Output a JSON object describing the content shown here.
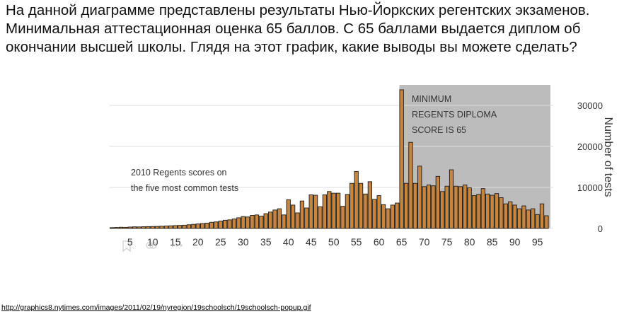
{
  "question": "На данной диаграмме представлены результаты Нью-Йоркских регентских экзаменов. Минимальная аттестационная оценка 65 баллов. С 65 баллами выдается диплом об окончании высшей школы. Глядя на этот график, какие выводы вы можете сделать?",
  "source_link": "http://graphics8.nytimes.com/images/2011/02/19/nyregion/19schoolsch/19schoolsch-popup.gif",
  "chart_data": {
    "type": "bar",
    "title": "2010 Regents scores on the five most common tests",
    "title_lines": [
      "2010 Regents scores on",
      "the five most common tests"
    ],
    "annotation_lines": [
      "MINIMUM",
      "REGENTS DIPLOMA",
      "SCORE IS 65"
    ],
    "ylabel": "Number of tests",
    "xlim": [
      1,
      98
    ],
    "ylim": [
      0,
      35000
    ],
    "yticks": [
      0,
      10000,
      20000,
      30000
    ],
    "ytick_labels": [
      "0",
      "10000",
      "20000",
      "30000"
    ],
    "xticks": [
      5,
      10,
      15,
      20,
      25,
      30,
      35,
      40,
      45,
      50,
      55,
      60,
      65,
      70,
      75,
      80,
      85,
      90,
      95
    ],
    "xtick_labels": [
      "5",
      "10",
      "15",
      "20",
      "25",
      "30",
      "35",
      "40",
      "45",
      "50",
      "55",
      "60",
      "65",
      "70",
      "75",
      "80",
      "85",
      "90",
      "95"
    ],
    "shaded_region": [
      65,
      98
    ],
    "grid": true,
    "colors": {
      "bar": "#c8853d",
      "bar_edge": "#1a1a1a",
      "shade": "#bcbcbc",
      "grid": "#dcdcdc",
      "text": "#333333"
    },
    "x": [
      1,
      2,
      3,
      4,
      5,
      6,
      7,
      8,
      9,
      10,
      11,
      12,
      13,
      14,
      15,
      16,
      17,
      18,
      19,
      20,
      21,
      22,
      23,
      24,
      25,
      26,
      27,
      28,
      29,
      30,
      31,
      32,
      33,
      34,
      35,
      36,
      37,
      38,
      39,
      40,
      41,
      42,
      43,
      44,
      45,
      46,
      47,
      48,
      49,
      50,
      51,
      52,
      53,
      54,
      55,
      56,
      57,
      58,
      59,
      60,
      61,
      62,
      63,
      64,
      65,
      66,
      67,
      68,
      69,
      70,
      71,
      72,
      73,
      74,
      75,
      76,
      77,
      78,
      79,
      80,
      81,
      82,
      83,
      84,
      85,
      86,
      87,
      88,
      89,
      90,
      91,
      92,
      93,
      94,
      95,
      96,
      97
    ],
    "values": [
      200,
      250,
      300,
      280,
      350,
      400,
      380,
      420,
      450,
      480,
      500,
      550,
      600,
      650,
      700,
      750,
      800,
      900,
      1000,
      1100,
      1200,
      1300,
      1500,
      1600,
      1800,
      2000,
      2100,
      2300,
      2600,
      2900,
      2800,
      3200,
      3300,
      3000,
      3600,
      4000,
      4500,
      4800,
      3300,
      7000,
      5700,
      3800,
      6700,
      5000,
      8200,
      8100,
      5300,
      8200,
      9000,
      8600,
      8600,
      5400,
      8300,
      11000,
      13900,
      11000,
      8400,
      11400,
      7100,
      8000,
      5800,
      4800,
      5700,
      6200,
      33800,
      11000,
      21000,
      11000,
      15200,
      10200,
      10600,
      10400,
      12700,
      9000,
      10300,
      14300,
      10300,
      10200,
      10600,
      9900,
      8000,
      8300,
      9700,
      8400,
      8100,
      8500,
      7500,
      6000,
      6500,
      5700,
      4800,
      5500,
      4500,
      4800,
      3400,
      6000,
      3100
    ]
  }
}
